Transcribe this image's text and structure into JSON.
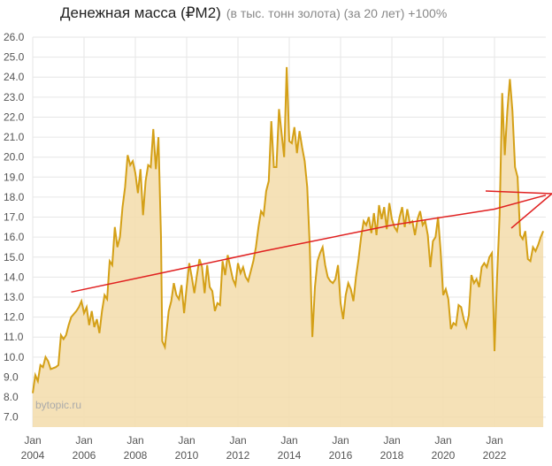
{
  "chart_data": {
    "type": "line",
    "title": "Денежная масса (₽M2)",
    "subtitle": "(в тыс. тонн золота) (за 20 лет) +100%",
    "watermark": "bytopic.ru",
    "xlim": [
      2004,
      2024
    ],
    "ylim": [
      6.5,
      26
    ],
    "grid": true,
    "xticks": [
      {
        "value": 2004,
        "label": "Jan 2004"
      },
      {
        "value": 2006,
        "label": "Jan 2006"
      },
      {
        "value": 2008,
        "label": "Jan 2008"
      },
      {
        "value": 2010,
        "label": "Jan 2010"
      },
      {
        "value": 2012,
        "label": "Jan 2012"
      },
      {
        "value": 2014,
        "label": "Jan 2014"
      },
      {
        "value": 2016,
        "label": "Jan 2016"
      },
      {
        "value": 2018,
        "label": "Jan 2018"
      },
      {
        "value": 2020,
        "label": "Jan 2020"
      },
      {
        "value": 2022,
        "label": "Jan 2022"
      }
    ],
    "yticks": [
      {
        "value": 26,
        "label": "26.0"
      },
      {
        "value": 25,
        "label": "25.0"
      },
      {
        "value": 24,
        "label": "24.0"
      },
      {
        "value": 23,
        "label": "23.0"
      },
      {
        "value": 22,
        "label": "22.0"
      },
      {
        "value": 21,
        "label": "21.0"
      },
      {
        "value": 20,
        "label": "20.0"
      },
      {
        "value": 19,
        "label": "19.0"
      },
      {
        "value": 18,
        "label": "18.0"
      },
      {
        "value": 17,
        "label": "17.0"
      },
      {
        "value": 16,
        "label": "16.0"
      },
      {
        "value": 15,
        "label": "15.0"
      },
      {
        "value": 14,
        "label": "14.0"
      },
      {
        "value": 13,
        "label": "13.0"
      },
      {
        "value": 12,
        "label": "12.0"
      },
      {
        "value": 11,
        "label": "11.0"
      },
      {
        "value": 10,
        "label": "10.0"
      },
      {
        "value": 9,
        "label": "9.0"
      },
      {
        "value": 8,
        "label": "8.0"
      },
      {
        "value": 7,
        "label": "7.0"
      }
    ],
    "x": [
      2004.0,
      2004.1,
      2004.2,
      2004.3,
      2004.4,
      2004.5,
      2004.6,
      2004.7,
      2004.9,
      2005.0,
      2005.1,
      2005.2,
      2005.3,
      2005.4,
      2005.5,
      2005.7,
      2005.8,
      2005.9,
      2006.0,
      2006.1,
      2006.2,
      2006.3,
      2006.4,
      2006.5,
      2006.6,
      2006.7,
      2006.8,
      2006.9,
      2007.0,
      2007.1,
      2007.2,
      2007.3,
      2007.4,
      2007.5,
      2007.6,
      2007.7,
      2007.8,
      2007.9,
      2008.0,
      2008.1,
      2008.2,
      2008.3,
      2008.4,
      2008.5,
      2008.6,
      2008.7,
      2008.8,
      2008.9,
      2009.0,
      2009.05,
      2009.15,
      2009.3,
      2009.4,
      2009.5,
      2009.6,
      2009.7,
      2009.8,
      2009.9,
      2010.0,
      2010.1,
      2010.2,
      2010.3,
      2010.4,
      2010.5,
      2010.6,
      2010.7,
      2010.8,
      2010.9,
      2011.0,
      2011.1,
      2011.2,
      2011.3,
      2011.4,
      2011.5,
      2011.6,
      2011.7,
      2011.8,
      2011.9,
      2012.0,
      2012.1,
      2012.2,
      2012.3,
      2012.4,
      2012.5,
      2012.6,
      2012.7,
      2012.8,
      2012.9,
      2013.0,
      2013.1,
      2013.2,
      2013.3,
      2013.4,
      2013.5,
      2013.6,
      2013.7,
      2013.8,
      2013.9,
      2014.0,
      2014.1,
      2014.2,
      2014.3,
      2014.4,
      2014.5,
      2014.6,
      2014.7,
      2014.8,
      2014.9,
      2015.0,
      2015.1,
      2015.2,
      2015.3,
      2015.4,
      2015.5,
      2015.6,
      2015.7,
      2015.8,
      2015.9,
      2016.0,
      2016.1,
      2016.2,
      2016.3,
      2016.4,
      2016.5,
      2016.6,
      2016.7,
      2016.8,
      2016.9,
      2017.0,
      2017.1,
      2017.2,
      2017.3,
      2017.4,
      2017.5,
      2017.6,
      2017.7,
      2017.8,
      2017.9,
      2018.0,
      2018.1,
      2018.2,
      2018.3,
      2018.4,
      2018.5,
      2018.6,
      2018.7,
      2018.8,
      2018.9,
      2019.0,
      2019.1,
      2019.2,
      2019.3,
      2019.4,
      2019.5,
      2019.6,
      2019.7,
      2019.8,
      2019.9,
      2020.0,
      2020.1,
      2020.2,
      2020.3,
      2020.4,
      2020.5,
      2020.6,
      2020.7,
      2020.8,
      2020.9,
      2021.0,
      2021.1,
      2021.2,
      2021.3,
      2021.4,
      2021.5,
      2021.6,
      2021.7,
      2021.8,
      2021.9,
      2022.0,
      2022.1,
      2022.2,
      2022.3,
      2022.4,
      2022.5,
      2022.6,
      2022.7,
      2022.8,
      2022.9,
      2023.0,
      2023.1,
      2023.2,
      2023.3,
      2023.4,
      2023.5,
      2023.6,
      2023.7,
      2023.8,
      2023.9
    ],
    "series": [
      {
        "color": "#d4a017",
        "fill": "#f3dcaa",
        "values": [
          8.2,
          9.1,
          8.8,
          9.6,
          9.5,
          10.0,
          9.8,
          9.4,
          9.5,
          9.6,
          11.1,
          10.9,
          11.1,
          11.6,
          12.0,
          12.3,
          12.5,
          12.8,
          12.2,
          12.5,
          11.6,
          12.3,
          11.5,
          11.9,
          11.2,
          12.3,
          13.1,
          12.9,
          14.8,
          14.6,
          16.5,
          15.5,
          16.0,
          17.5,
          18.5,
          20.1,
          19.6,
          19.8,
          19.2,
          18.2,
          19.4,
          17.1,
          18.8,
          19.6,
          19.5,
          21.4,
          19.4,
          21.0,
          16.0,
          10.8,
          10.5,
          12.3,
          12.8,
          13.7,
          13.1,
          12.9,
          13.6,
          12.2,
          13.5,
          14.7,
          14.0,
          13.2,
          14.1,
          14.9,
          14.5,
          13.2,
          14.6,
          13.5,
          13.3,
          12.3,
          12.7,
          12.6,
          14.8,
          14.1,
          15.1,
          14.5,
          13.9,
          13.6,
          14.7,
          14.2,
          14.5,
          14.0,
          13.8,
          14.3,
          14.8,
          15.5,
          16.5,
          17.3,
          17.1,
          18.3,
          18.8,
          21.8,
          19.5,
          19.5,
          22.4,
          21.2,
          20.0,
          24.5,
          20.8,
          20.7,
          21.5,
          20.2,
          21.3,
          20.5,
          19.8,
          18.5,
          15.5,
          11.0,
          13.5,
          14.8,
          15.2,
          15.5,
          14.6,
          14.0,
          13.8,
          13.7,
          13.9,
          14.6,
          12.7,
          11.9,
          13.1,
          13.7,
          13.4,
          12.8,
          14.0,
          14.9,
          16.0,
          16.8,
          16.6,
          17.0,
          16.2,
          17.2,
          16.1,
          17.6,
          16.9,
          17.5,
          16.4,
          17.7,
          16.9,
          16.5,
          16.3,
          17.0,
          17.5,
          16.5,
          17.4,
          16.7,
          16.8,
          16.1,
          16.9,
          17.3,
          16.6,
          16.8,
          16.1,
          14.5,
          15.8,
          16.0,
          17.0,
          15.3,
          13.1,
          13.4,
          12.9,
          11.4,
          11.7,
          11.6,
          12.6,
          12.5,
          11.9,
          11.5,
          12.1,
          14.1,
          13.7,
          13.9,
          13.5,
          14.5,
          14.7,
          14.5,
          15.0,
          15.2,
          10.3,
          14.0,
          17.1,
          23.2,
          20.1,
          22.3,
          23.9,
          22.3,
          19.5,
          19.0,
          16.1,
          15.9,
          16.3,
          14.9,
          14.8,
          15.5,
          15.3,
          15.6,
          16.0,
          16.3
        ]
      }
    ],
    "trend": {
      "color": "#e02020",
      "x": [
        2005.5,
        2009,
        2013,
        2018,
        2022,
        2024
      ],
      "values": [
        13.25,
        14.2,
        15.3,
        16.6,
        17.4,
        18.1
      ]
    }
  }
}
